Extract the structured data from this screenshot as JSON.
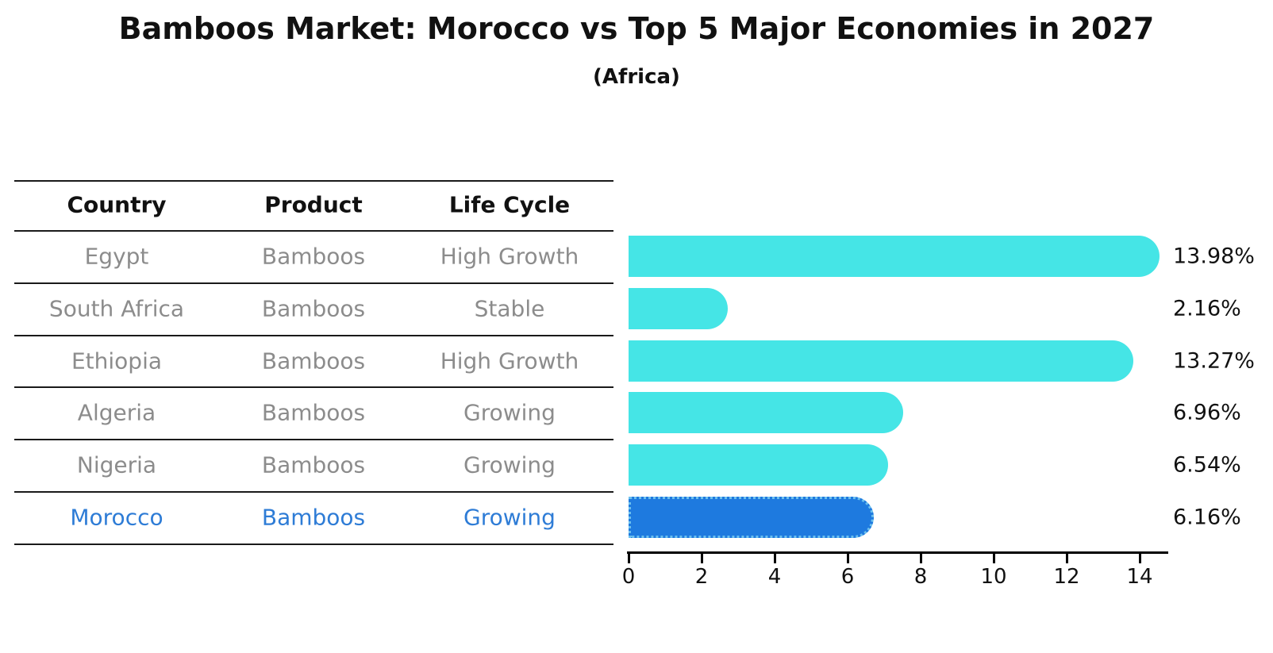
{
  "title": "Bamboos Market: Morocco vs Top 5 Major Economies in 2027",
  "subtitle": "(Africa)",
  "table": {
    "headers": [
      "Country",
      "Product",
      "Life Cycle"
    ],
    "rows": [
      {
        "country": "Egypt",
        "product": "Bamboos",
        "life_cycle": "High Growth",
        "highlight": false
      },
      {
        "country": "South Africa",
        "product": "Bamboos",
        "life_cycle": "Stable",
        "highlight": false
      },
      {
        "country": "Ethiopia",
        "product": "Bamboos",
        "life_cycle": "High Growth",
        "highlight": false
      },
      {
        "country": "Algeria",
        "product": "Bamboos",
        "life_cycle": "Growing",
        "highlight": false
      },
      {
        "country": "Nigeria",
        "product": "Bamboos",
        "life_cycle": "Growing",
        "highlight": false
      },
      {
        "country": "Morocco",
        "product": "Bamboos",
        "life_cycle": "Growing",
        "highlight": true
      }
    ]
  },
  "chart_data": {
    "type": "bar",
    "orientation": "horizontal",
    "title": "Bamboos Market: Morocco vs Top 5 Major Economies in 2027",
    "subtitle": "(Africa)",
    "categories": [
      "Egypt",
      "South Africa",
      "Ethiopia",
      "Algeria",
      "Nigeria",
      "Morocco"
    ],
    "values": [
      13.98,
      2.16,
      13.27,
      6.96,
      6.54,
      6.16
    ],
    "value_labels": [
      "13.98%",
      "2.16%",
      "13.27%",
      "6.96%",
      "6.54%",
      "6.16%"
    ],
    "unit": "percent",
    "x_ticks": [
      0,
      2,
      4,
      6,
      8,
      10,
      12,
      14
    ],
    "xlim": [
      0,
      14.77
    ],
    "grid": false,
    "legend": "none",
    "highlight_category": "Morocco",
    "colors": {
      "bar": "#45e5e6",
      "highlight_bar": "#1e7adf",
      "highlight_bar_border": "#6cc0ee",
      "highlight_text": "#2e7cd6",
      "table_text_gray": "#8c8c8c",
      "text": "#111111"
    }
  }
}
